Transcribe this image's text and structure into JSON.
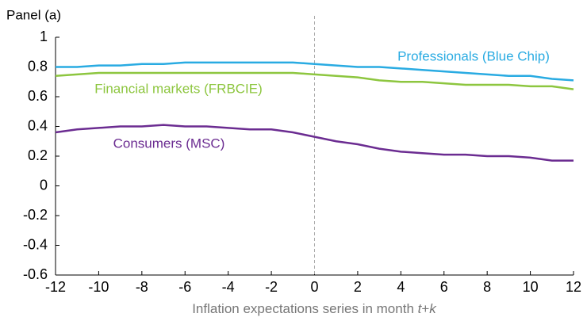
{
  "chart_data": {
    "type": "line",
    "panel_label": "Panel (a)",
    "xlabel": [
      "Inflation expectations series in month ",
      "t",
      "+",
      "k"
    ],
    "x": [
      -12,
      -11,
      -10,
      -9,
      -8,
      -7,
      -6,
      -5,
      -4,
      -3,
      -2,
      -1,
      0,
      1,
      2,
      3,
      4,
      5,
      6,
      7,
      8,
      9,
      10,
      11,
      12
    ],
    "series": [
      {
        "name": "Professionals (Blue Chip)",
        "color": "#29abe2",
        "values": [
          0.8,
          0.8,
          0.81,
          0.81,
          0.82,
          0.82,
          0.83,
          0.83,
          0.83,
          0.83,
          0.83,
          0.83,
          0.82,
          0.81,
          0.8,
          0.8,
          0.79,
          0.78,
          0.77,
          0.76,
          0.75,
          0.74,
          0.74,
          0.72,
          0.71
        ]
      },
      {
        "name": "Financial markets (FRBCIE)",
        "color": "#8dc63f",
        "values": [
          0.74,
          0.75,
          0.76,
          0.76,
          0.76,
          0.76,
          0.76,
          0.76,
          0.76,
          0.76,
          0.76,
          0.76,
          0.75,
          0.74,
          0.73,
          0.71,
          0.7,
          0.7,
          0.69,
          0.68,
          0.68,
          0.68,
          0.67,
          0.67,
          0.65
        ]
      },
      {
        "name": "Consumers (MSC)",
        "color": "#6b2c91",
        "values": [
          0.36,
          0.38,
          0.39,
          0.4,
          0.4,
          0.41,
          0.4,
          0.4,
          0.39,
          0.38,
          0.38,
          0.36,
          0.33,
          0.3,
          0.28,
          0.25,
          0.23,
          0.22,
          0.21,
          0.21,
          0.2,
          0.2,
          0.19,
          0.17,
          0.17
        ]
      }
    ],
    "xlim": [
      -12,
      12
    ],
    "xticks": [
      -12,
      -10,
      -8,
      -6,
      -4,
      -2,
      0,
      2,
      4,
      6,
      8,
      10,
      12
    ],
    "ylim": [
      -0.6,
      1
    ],
    "yticks": [
      1,
      0.8,
      0.6,
      0.4,
      0.2,
      0,
      -0.2,
      -0.4,
      -0.6
    ]
  }
}
